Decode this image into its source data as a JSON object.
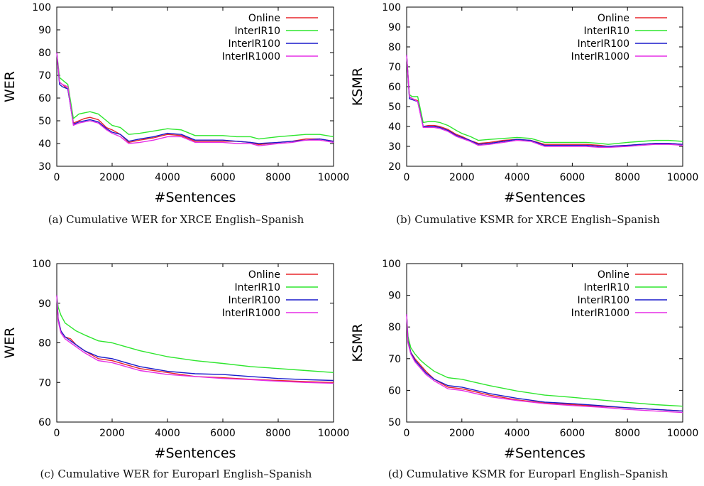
{
  "chart_data": [
    {
      "type": "line",
      "caption": "(a) Cumulative WER for XRCE English–Spanish",
      "xlabel": "#Sentences",
      "ylabel": "WER",
      "xlim": [
        0,
        10000
      ],
      "ylim": [
        30,
        100
      ],
      "xticks": [
        0,
        2000,
        4000,
        6000,
        8000,
        10000
      ],
      "yticks": [
        30,
        40,
        50,
        60,
        70,
        80,
        90,
        100
      ],
      "legend": "top-right",
      "grid": false,
      "series": [
        {
          "name": "Online",
          "color": "#e8262b",
          "x": [
            0,
            100,
            200,
            400,
            600,
            800,
            1000,
            1200,
            1500,
            1800,
            2000,
            2300,
            2600,
            3000,
            3500,
            4000,
            4500,
            5000,
            5500,
            6000,
            6500,
            7000,
            7300,
            8000,
            8500,
            9000,
            9500,
            10000
          ],
          "y": [
            80,
            67,
            66,
            64,
            49,
            50,
            51,
            51.5,
            50.5,
            47,
            46,
            44,
            40.5,
            41.5,
            42.5,
            44,
            43.5,
            41,
            41,
            41,
            41,
            40.5,
            39.5,
            40.5,
            41,
            42,
            42,
            41
          ]
        },
        {
          "name": "InterIR10",
          "color": "#2ee62e",
          "x": [
            0,
            100,
            200,
            400,
            600,
            800,
            1000,
            1200,
            1500,
            1800,
            2000,
            2300,
            2600,
            3000,
            3500,
            4000,
            4500,
            5000,
            5500,
            6000,
            6500,
            7000,
            7300,
            8000,
            8500,
            9000,
            9500,
            10000
          ],
          "y": [
            80,
            69,
            68,
            66,
            51,
            53,
            53.5,
            54,
            53,
            50,
            48,
            47,
            44,
            44.5,
            45.5,
            46.5,
            46,
            43.5,
            43.5,
            43.5,
            43,
            43,
            42,
            43,
            43.5,
            44,
            44,
            43
          ]
        },
        {
          "name": "InterIR100",
          "color": "#1a1acc",
          "x": [
            0,
            100,
            200,
            400,
            600,
            800,
            1000,
            1200,
            1500,
            1800,
            2000,
            2300,
            2600,
            3000,
            3500,
            4000,
            4500,
            5000,
            5500,
            6000,
            6500,
            7000,
            7300,
            8000,
            8500,
            9000,
            9500,
            10000
          ],
          "y": [
            80,
            66,
            65,
            64,
            48.5,
            49.5,
            50,
            50.5,
            49.5,
            46.5,
            45,
            44,
            41,
            42,
            43,
            44.5,
            44,
            41.5,
            41.5,
            41.5,
            41,
            40.5,
            40,
            40.5,
            41,
            41.5,
            42,
            41
          ]
        },
        {
          "name": "InterIR1000",
          "color": "#e62ee6",
          "x": [
            0,
            100,
            200,
            400,
            600,
            800,
            1000,
            1200,
            1500,
            1800,
            2000,
            2300,
            2600,
            3000,
            3500,
            4000,
            4500,
            5000,
            5500,
            6000,
            6500,
            7000,
            7300,
            8000,
            8500,
            9000,
            9500,
            10000
          ],
          "y": [
            80,
            67,
            66,
            65,
            48,
            49,
            49.5,
            50,
            49,
            46,
            44.5,
            43,
            40,
            40.5,
            41.5,
            43,
            43,
            40.5,
            40.5,
            40.5,
            40,
            40,
            39,
            40,
            40.5,
            41.5,
            41.5,
            40.5
          ]
        }
      ]
    },
    {
      "type": "line",
      "caption": "(b) Cumulative KSMR for XRCE English–Spanish",
      "xlabel": "#Sentences",
      "ylabel": "KSMR",
      "xlim": [
        0,
        10000
      ],
      "ylim": [
        20,
        100
      ],
      "xticks": [
        0,
        2000,
        4000,
        6000,
        8000,
        10000
      ],
      "yticks": [
        20,
        30,
        40,
        50,
        60,
        70,
        80,
        90,
        100
      ],
      "legend": "top-right",
      "grid": false,
      "series": [
        {
          "name": "Online",
          "color": "#e8262b",
          "x": [
            0,
            100,
            200,
            400,
            600,
            800,
            1000,
            1200,
            1500,
            1800,
            2000,
            2300,
            2600,
            3000,
            3500,
            4000,
            4500,
            5000,
            5500,
            6000,
            6500,
            7000,
            7300,
            8000,
            8500,
            9000,
            9500,
            10000
          ],
          "y": [
            76,
            55,
            54,
            53,
            40,
            40.5,
            40.5,
            40,
            38.5,
            36,
            35,
            33,
            31.5,
            32,
            33,
            33.5,
            33,
            31,
            31,
            31,
            31,
            30.5,
            30,
            30.5,
            31,
            31.5,
            31.5,
            31
          ]
        },
        {
          "name": "InterIR10",
          "color": "#2ee62e",
          "x": [
            0,
            100,
            200,
            400,
            600,
            800,
            1000,
            1200,
            1500,
            1800,
            2000,
            2300,
            2600,
            3000,
            3500,
            4000,
            4500,
            5000,
            5500,
            6000,
            6500,
            7000,
            7300,
            8000,
            8500,
            9000,
            9500,
            10000
          ],
          "y": [
            76,
            56,
            55,
            55,
            42,
            42.5,
            42.5,
            42,
            40.5,
            38,
            36.5,
            35,
            33,
            33.5,
            34,
            34.5,
            34,
            32,
            32,
            32,
            32,
            31.5,
            31,
            32,
            32.5,
            33,
            33,
            32.5
          ]
        },
        {
          "name": "InterIR100",
          "color": "#1a1acc",
          "x": [
            0,
            100,
            200,
            400,
            600,
            800,
            1000,
            1200,
            1500,
            1800,
            2000,
            2300,
            2600,
            3000,
            3500,
            4000,
            4500,
            5000,
            5500,
            6000,
            6500,
            7000,
            7300,
            8000,
            8500,
            9000,
            9500,
            10000
          ],
          "y": [
            76,
            54,
            53.5,
            52.5,
            40,
            40,
            40,
            39.5,
            38,
            35.5,
            34.5,
            33,
            31,
            31.5,
            32.5,
            33.5,
            33,
            30.5,
            30.5,
            30.5,
            30.5,
            30,
            30,
            30.5,
            31,
            31.5,
            31.5,
            31
          ]
        },
        {
          "name": "InterIR1000",
          "color": "#e62ee6",
          "x": [
            0,
            100,
            200,
            400,
            600,
            800,
            1000,
            1200,
            1500,
            1800,
            2000,
            2300,
            2600,
            3000,
            3500,
            4000,
            4500,
            5000,
            5500,
            6000,
            6500,
            7000,
            7300,
            8000,
            8500,
            9000,
            9500,
            10000
          ],
          "y": [
            76,
            55,
            54,
            52.5,
            39.5,
            39.5,
            39.5,
            39,
            37.5,
            35,
            34,
            32.5,
            30.5,
            31,
            32,
            33,
            32.5,
            30,
            30,
            30,
            30,
            29.5,
            29.5,
            30,
            30.5,
            31,
            31,
            30.5
          ]
        }
      ]
    },
    {
      "type": "line",
      "caption": "(c) Cumulative WER for Europarl English–Spanish",
      "xlabel": "#Sentences",
      "ylabel": "WER",
      "xlim": [
        0,
        10000
      ],
      "ylim": [
        60,
        100
      ],
      "xticks": [
        0,
        2000,
        4000,
        6000,
        8000,
        10000
      ],
      "yticks": [
        60,
        70,
        80,
        90,
        100
      ],
      "legend": "top-right",
      "grid": false,
      "series": [
        {
          "name": "Online",
          "color": "#e8262b",
          "x": [
            0,
            50,
            150,
            300,
            500,
            700,
            1000,
            1500,
            2000,
            2500,
            3000,
            4000,
            5000,
            6000,
            7000,
            8000,
            9000,
            10000
          ],
          "y": [
            92,
            86,
            83,
            81.5,
            81,
            79.5,
            78,
            76,
            75.5,
            74.5,
            73.5,
            72.5,
            71.5,
            71.2,
            70.8,
            70.5,
            70.2,
            70
          ]
        },
        {
          "name": "InterIR10",
          "color": "#2ee62e",
          "x": [
            0,
            50,
            150,
            300,
            500,
            700,
            1000,
            1500,
            2000,
            2500,
            3000,
            4000,
            5000,
            6000,
            7000,
            8000,
            9000,
            10000
          ],
          "y": [
            92,
            89,
            87,
            85,
            84,
            83,
            82,
            80.5,
            80,
            79,
            78,
            76.5,
            75.5,
            74.8,
            74,
            73.5,
            73,
            72.5
          ]
        },
        {
          "name": "InterIR100",
          "color": "#1a1acc",
          "x": [
            0,
            50,
            150,
            300,
            500,
            700,
            1000,
            1500,
            2000,
            2500,
            3000,
            4000,
            5000,
            6000,
            7000,
            8000,
            9000,
            10000
          ],
          "y": [
            92,
            86,
            83,
            81.5,
            80.5,
            79.5,
            78,
            76.5,
            76,
            75,
            74,
            72.8,
            72.2,
            72,
            71.5,
            71,
            70.7,
            70.5
          ]
        },
        {
          "name": "InterIR1000",
          "color": "#e62ee6",
          "x": [
            0,
            50,
            150,
            300,
            500,
            700,
            1000,
            1500,
            2000,
            2500,
            3000,
            4000,
            5000,
            6000,
            7000,
            8000,
            9000,
            10000
          ],
          "y": [
            92,
            85.5,
            82.5,
            81,
            80,
            79,
            77.5,
            75.5,
            75,
            74,
            73,
            72,
            71.5,
            71,
            70.7,
            70.3,
            70,
            69.8
          ]
        }
      ]
    },
    {
      "type": "line",
      "caption": "(d) Cumulative KSMR for Europarl English–Spanish",
      "xlabel": "#Sentences",
      "ylabel": "KSMR",
      "xlim": [
        0,
        10000
      ],
      "ylim": [
        50,
        100
      ],
      "xticks": [
        0,
        2000,
        4000,
        6000,
        8000,
        10000
      ],
      "yticks": [
        50,
        60,
        70,
        80,
        90,
        100
      ],
      "legend": "top-right",
      "grid": false,
      "series": [
        {
          "name": "Online",
          "color": "#e8262b",
          "x": [
            0,
            50,
            150,
            300,
            500,
            700,
            1000,
            1500,
            2000,
            2500,
            3000,
            4000,
            5000,
            6000,
            7000,
            8000,
            9000,
            10000
          ],
          "y": [
            84,
            76,
            72,
            70,
            68,
            66,
            63.5,
            61,
            60.5,
            59.5,
            58.5,
            57,
            56,
            55.5,
            55,
            54.5,
            54,
            53.5
          ]
        },
        {
          "name": "InterIR10",
          "color": "#2ee62e",
          "x": [
            0,
            50,
            150,
            300,
            500,
            700,
            1000,
            1500,
            2000,
            2500,
            3000,
            4000,
            5000,
            6000,
            7000,
            8000,
            9000,
            10000
          ],
          "y": [
            84,
            77,
            73.5,
            71.5,
            69.5,
            68,
            66,
            64,
            63.5,
            62.5,
            61.5,
            59.8,
            58.5,
            57.8,
            57,
            56.2,
            55.5,
            55
          ]
        },
        {
          "name": "InterIR100",
          "color": "#1a1acc",
          "x": [
            0,
            50,
            150,
            300,
            500,
            700,
            1000,
            1500,
            2000,
            2500,
            3000,
            4000,
            5000,
            6000,
            7000,
            8000,
            9000,
            10000
          ],
          "y": [
            84,
            75.5,
            72,
            69.5,
            67.5,
            65.5,
            63.5,
            61.5,
            61,
            60,
            59,
            57.5,
            56.3,
            55.8,
            55.2,
            54.5,
            54,
            53.5
          ]
        },
        {
          "name": "InterIR1000",
          "color": "#e62ee6",
          "x": [
            0,
            50,
            150,
            300,
            500,
            700,
            1000,
            1500,
            2000,
            2500,
            3000,
            4000,
            5000,
            6000,
            7000,
            8000,
            9000,
            10000
          ],
          "y": [
            84,
            75,
            71.5,
            69,
            67,
            65,
            63,
            60.5,
            60,
            59,
            58,
            56.8,
            55.8,
            55.2,
            54.7,
            54,
            53.5,
            53
          ]
        }
      ]
    }
  ]
}
